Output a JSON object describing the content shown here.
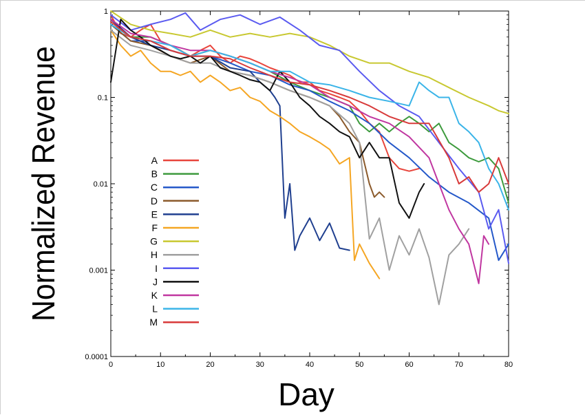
{
  "chart_data": {
    "type": "line",
    "title": "",
    "xlabel": "Day",
    "ylabel": "Normalized Revenue",
    "xlim": [
      0,
      80
    ],
    "ylim": [
      0.0001,
      1
    ],
    "yscale": "log",
    "grid": false,
    "legend": "center-left",
    "xticks": [
      "0",
      "10",
      "20",
      "30",
      "40",
      "50",
      "60",
      "70",
      "80"
    ],
    "yticks": [
      "0.0001",
      "0.001",
      "0.01",
      "0.1",
      "1"
    ],
    "series": [
      {
        "name": "A",
        "color": "#e8453c",
        "x": [
          0,
          2,
          4,
          6,
          8,
          10,
          12,
          14,
          16,
          18,
          20,
          22,
          24,
          26,
          28,
          30,
          32,
          34,
          36,
          38,
          40,
          42,
          44,
          46,
          48,
          50,
          52,
          54,
          56,
          58,
          60,
          62
        ],
        "y": [
          0.9,
          0.55,
          0.5,
          0.6,
          0.7,
          0.45,
          0.4,
          0.35,
          0.3,
          0.35,
          0.4,
          0.3,
          0.25,
          0.3,
          0.28,
          0.25,
          0.22,
          0.2,
          0.18,
          0.15,
          0.15,
          0.12,
          0.11,
          0.1,
          0.09,
          0.07,
          0.05,
          0.04,
          0.02,
          0.015,
          0.014,
          0.015
        ]
      },
      {
        "name": "B",
        "color": "#3c9a3c",
        "x": [
          0,
          4,
          8,
          12,
          16,
          20,
          24,
          28,
          32,
          36,
          40,
          44,
          48,
          50,
          52,
          54,
          56,
          58,
          60,
          62,
          64,
          66,
          68,
          70,
          72,
          74,
          76,
          78,
          80
        ],
        "y": [
          0.8,
          0.5,
          0.5,
          0.4,
          0.3,
          0.35,
          0.3,
          0.25,
          0.2,
          0.15,
          0.12,
          0.1,
          0.08,
          0.05,
          0.04,
          0.05,
          0.04,
          0.05,
          0.06,
          0.05,
          0.04,
          0.05,
          0.03,
          0.025,
          0.02,
          0.018,
          0.02,
          0.015,
          0.006
        ]
      },
      {
        "name": "C",
        "color": "#2458c9",
        "x": [
          0,
          4,
          8,
          12,
          16,
          20,
          24,
          28,
          32,
          36,
          40,
          44,
          48,
          52,
          56,
          60,
          64,
          68,
          72,
          76,
          78,
          80
        ],
        "y": [
          0.7,
          0.45,
          0.45,
          0.35,
          0.3,
          0.3,
          0.25,
          0.2,
          0.18,
          0.14,
          0.12,
          0.09,
          0.07,
          0.05,
          0.03,
          0.02,
          0.012,
          0.008,
          0.006,
          0.004,
          0.0013,
          0.002
        ]
      },
      {
        "name": "D",
        "color": "#8b5a2b",
        "x": [
          0,
          4,
          8,
          12,
          16,
          20,
          24,
          28,
          32,
          36,
          40,
          44,
          46,
          48,
          50,
          52,
          53,
          54,
          55
        ],
        "y": [
          0.7,
          0.45,
          0.4,
          0.3,
          0.25,
          0.3,
          0.2,
          0.18,
          0.15,
          0.12,
          0.1,
          0.08,
          0.06,
          0.04,
          0.03,
          0.01,
          0.007,
          0.008,
          0.007
        ]
      },
      {
        "name": "E",
        "color": "#1f3f8f",
        "x": [
          0,
          4,
          8,
          12,
          16,
          20,
          24,
          28,
          30,
          32,
          33,
          34,
          35,
          36,
          37,
          38,
          40,
          42,
          44,
          46,
          48
        ],
        "y": [
          0.8,
          0.5,
          0.4,
          0.35,
          0.3,
          0.3,
          0.22,
          0.2,
          0.15,
          0.12,
          0.1,
          0.08,
          0.004,
          0.01,
          0.0017,
          0.0025,
          0.004,
          0.0022,
          0.0035,
          0.0018,
          0.0017
        ]
      },
      {
        "name": "F",
        "color": "#f5a623",
        "x": [
          0,
          2,
          4,
          6,
          8,
          10,
          12,
          14,
          16,
          18,
          20,
          22,
          24,
          26,
          28,
          30,
          32,
          34,
          36,
          38,
          40,
          42,
          44,
          46,
          48,
          49,
          50,
          52,
          54
        ],
        "y": [
          0.6,
          0.4,
          0.3,
          0.35,
          0.25,
          0.2,
          0.2,
          0.18,
          0.2,
          0.15,
          0.18,
          0.15,
          0.12,
          0.13,
          0.1,
          0.09,
          0.07,
          0.06,
          0.05,
          0.04,
          0.035,
          0.03,
          0.025,
          0.017,
          0.02,
          0.0013,
          0.002,
          0.0012,
          0.0008
        ]
      },
      {
        "name": "G",
        "color": "#c8c830",
        "x": [
          0,
          4,
          8,
          12,
          16,
          20,
          24,
          28,
          32,
          36,
          40,
          44,
          48,
          52,
          56,
          60,
          64,
          68,
          72,
          76,
          78,
          80
        ],
        "y": [
          1.0,
          0.7,
          0.6,
          0.55,
          0.5,
          0.6,
          0.5,
          0.55,
          0.5,
          0.55,
          0.5,
          0.4,
          0.3,
          0.25,
          0.25,
          0.2,
          0.17,
          0.13,
          0.1,
          0.08,
          0.07,
          0.065
        ]
      },
      {
        "name": "H",
        "color": "#a0a0a0",
        "x": [
          0,
          4,
          8,
          12,
          16,
          20,
          24,
          28,
          32,
          36,
          40,
          44,
          48,
          50,
          52,
          54,
          56,
          58,
          60,
          62,
          64,
          66,
          68,
          70,
          72
        ],
        "y": [
          0.6,
          0.4,
          0.35,
          0.3,
          0.25,
          0.25,
          0.2,
          0.18,
          0.15,
          0.12,
          0.1,
          0.08,
          0.05,
          0.03,
          0.0023,
          0.004,
          0.001,
          0.0025,
          0.0015,
          0.003,
          0.0014,
          0.0004,
          0.0015,
          0.002,
          0.003
        ]
      },
      {
        "name": "I",
        "color": "#5a5af0",
        "x": [
          0,
          4,
          8,
          12,
          15,
          18,
          22,
          26,
          30,
          34,
          38,
          42,
          46,
          50,
          54,
          58,
          62,
          66,
          70,
          74,
          76,
          78,
          80
        ],
        "y": [
          0.9,
          0.6,
          0.7,
          0.8,
          0.95,
          0.6,
          0.8,
          0.9,
          0.7,
          0.85,
          0.6,
          0.4,
          0.35,
          0.2,
          0.12,
          0.08,
          0.06,
          0.03,
          0.015,
          0.008,
          0.003,
          0.005,
          0.0012
        ]
      },
      {
        "name": "J",
        "color": "#111111",
        "x": [
          0,
          2,
          4,
          6,
          8,
          10,
          12,
          14,
          16,
          18,
          20,
          22,
          24,
          26,
          28,
          30,
          32,
          34,
          36,
          38,
          40,
          42,
          44,
          46,
          48,
          50,
          52,
          54,
          56,
          58,
          60,
          62,
          63
        ],
        "y": [
          0.15,
          0.8,
          0.6,
          0.5,
          0.4,
          0.35,
          0.3,
          0.28,
          0.3,
          0.25,
          0.3,
          0.22,
          0.2,
          0.18,
          0.16,
          0.15,
          0.12,
          0.2,
          0.15,
          0.1,
          0.08,
          0.06,
          0.05,
          0.04,
          0.035,
          0.02,
          0.03,
          0.02,
          0.02,
          0.006,
          0.004,
          0.008,
          0.01
        ]
      },
      {
        "name": "K",
        "color": "#c036a0",
        "x": [
          0,
          4,
          8,
          12,
          16,
          20,
          24,
          28,
          32,
          36,
          40,
          44,
          48,
          52,
          56,
          60,
          64,
          66,
          68,
          70,
          72,
          74,
          75,
          76
        ],
        "y": [
          0.8,
          0.55,
          0.5,
          0.4,
          0.35,
          0.35,
          0.3,
          0.25,
          0.2,
          0.17,
          0.14,
          0.1,
          0.08,
          0.06,
          0.05,
          0.035,
          0.02,
          0.01,
          0.005,
          0.003,
          0.002,
          0.0007,
          0.0025,
          0.002
        ]
      },
      {
        "name": "L",
        "color": "#3ab4e8",
        "x": [
          0,
          4,
          8,
          12,
          16,
          20,
          24,
          28,
          32,
          36,
          40,
          44,
          48,
          52,
          56,
          60,
          62,
          64,
          66,
          68,
          70,
          72,
          74,
          76,
          78,
          80
        ],
        "y": [
          0.7,
          0.5,
          0.45,
          0.4,
          0.3,
          0.35,
          0.3,
          0.25,
          0.2,
          0.2,
          0.15,
          0.14,
          0.12,
          0.1,
          0.09,
          0.08,
          0.15,
          0.12,
          0.1,
          0.1,
          0.05,
          0.04,
          0.03,
          0.015,
          0.01,
          0.005
        ]
      },
      {
        "name": "M",
        "color": "#d83a3a",
        "x": [
          0,
          4,
          8,
          12,
          16,
          20,
          24,
          28,
          32,
          36,
          40,
          44,
          48,
          52,
          56,
          60,
          64,
          68,
          70,
          72,
          74,
          76,
          78,
          80
        ],
        "y": [
          0.75,
          0.5,
          0.45,
          0.35,
          0.3,
          0.3,
          0.28,
          0.22,
          0.18,
          0.15,
          0.14,
          0.12,
          0.1,
          0.08,
          0.06,
          0.05,
          0.05,
          0.02,
          0.01,
          0.012,
          0.008,
          0.01,
          0.02,
          0.01
        ]
      }
    ]
  }
}
